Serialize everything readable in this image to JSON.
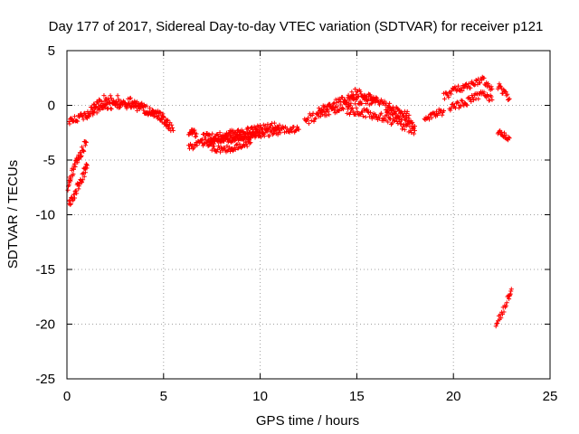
{
  "chart_data": {
    "type": "scatter",
    "title": "Day 177 of 2017, Sidereal Day-to-day VTEC variation (SDTVAR) for receiver p121",
    "xlabel": "GPS time / hours",
    "ylabel": "SDTVAR / TECUs",
    "xlim": [
      0,
      25
    ],
    "ylim": [
      -25,
      5
    ],
    "x_ticks": [
      0,
      5,
      10,
      15,
      20,
      25
    ],
    "y_ticks": [
      -25,
      -20,
      -15,
      -10,
      -5,
      0,
      5
    ],
    "grid": true,
    "marker": "+",
    "series": [
      {
        "name": "SDTVAR",
        "color": "#ff0000",
        "tracks": [
          {
            "x": [
              0.05,
              0.2,
              0.4,
              0.6,
              0.8,
              1.0
            ],
            "y": [
              -7.3,
              -6.5,
              -5.6,
              -4.8,
              -4.1,
              -3.4
            ],
            "spread": 0.45
          },
          {
            "x": [
              0.1,
              0.3,
              0.5,
              0.7,
              0.9,
              1.05
            ],
            "y": [
              -9.2,
              -8.5,
              -7.7,
              -6.9,
              -6.1,
              -5.5
            ],
            "spread": 0.45
          },
          {
            "x": [
              0.1,
              0.4,
              0.7,
              1.0,
              1.2
            ],
            "y": [
              -1.5,
              -1.3,
              -1.1,
              -0.9,
              -0.7
            ],
            "spread": 0.35
          },
          {
            "x": [
              1.2,
              1.5,
              2.0,
              2.5,
              3.0,
              3.5,
              4.0,
              4.5,
              5.0,
              5.5
            ],
            "y": [
              -0.4,
              0.2,
              0.5,
              0.5,
              0.3,
              0.2,
              -0.3,
              -0.8,
              -1.2,
              -2.3
            ],
            "spread": 0.45
          },
          {
            "x": [
              1.3,
              1.8,
              2.3,
              2.8,
              3.3,
              3.8,
              4.3,
              4.8,
              5.3
            ],
            "y": [
              -0.6,
              -0.1,
              0.0,
              0.1,
              0.0,
              -0.2,
              -0.6,
              -1.1,
              -1.8
            ],
            "spread": 0.35
          },
          {
            "x": [
              6.3,
              6.5,
              6.7
            ],
            "y": [
              -2.4,
              -2.5,
              -2.6
            ],
            "spread": 0.3
          },
          {
            "x": [
              6.3,
              7.0,
              8.0,
              9.0,
              10.0,
              11.0,
              12.0
            ],
            "y": [
              -3.8,
              -3.5,
              -3.2,
              -2.9,
              -2.6,
              -2.3,
              -2.2
            ],
            "spread": 0.35
          },
          {
            "x": [
              7.0,
              8.0,
              9.0,
              10.0,
              11.0
            ],
            "y": [
              -2.9,
              -2.7,
              -2.4,
              -2.1,
              -1.8
            ],
            "spread": 0.3
          },
          {
            "x": [
              7.3,
              8.3,
              9.3,
              10.0
            ],
            "y": [
              -3.4,
              -3.0,
              -2.9,
              -2.5
            ],
            "spread": 0.3
          },
          {
            "x": [
              7.5,
              8.5,
              9.5
            ],
            "y": [
              -4.0,
              -4.0,
              -3.4
            ],
            "spread": 0.3
          },
          {
            "x": [
              12.3,
              13.0,
              14.0,
              15.0,
              16.0
            ],
            "y": [
              -1.4,
              -0.9,
              -0.2,
              0.5,
              0.4
            ],
            "spread": 0.45
          },
          {
            "x": [
              13.0,
              14.0,
              15.0,
              16.0,
              17.0,
              17.7
            ],
            "y": [
              -0.5,
              0.2,
              1.2,
              0.4,
              -0.4,
              -0.9
            ],
            "spread": 0.4
          },
          {
            "x": [
              14.5,
              15.2,
              16.0,
              17.0,
              18.0
            ],
            "y": [
              -0.4,
              -0.6,
              -0.9,
              -1.5,
              -2.3
            ],
            "spread": 0.4
          },
          {
            "x": [
              16.5,
              17.0,
              17.5,
              18.0
            ],
            "y": [
              -0.3,
              -0.8,
              -1.3,
              -1.9
            ],
            "spread": 0.3
          },
          {
            "x": [
              18.5,
              19.0,
              19.5
            ],
            "y": [
              -1.2,
              -0.9,
              -0.5
            ],
            "spread": 0.35
          },
          {
            "x": [
              19.5,
              20.0,
              20.5,
              21.0,
              21.5,
              22.0
            ],
            "y": [
              0.8,
              1.3,
              1.7,
              2.0,
              2.3,
              1.5
            ],
            "spread": 0.35
          },
          {
            "x": [
              19.8,
              20.5,
              21.0,
              21.5,
              22.0
            ],
            "y": [
              -0.3,
              0.2,
              0.6,
              1.0,
              0.5
            ],
            "spread": 0.35
          },
          {
            "x": [
              22.3,
              22.6,
              22.9
            ],
            "y": [
              1.8,
              1.2,
              0.6
            ],
            "spread": 0.35
          },
          {
            "x": [
              22.3,
              22.6,
              22.9
            ],
            "y": [
              -2.5,
              -2.7,
              -3.0
            ],
            "spread": 0.25
          },
          {
            "x": [
              22.2,
              22.5,
              22.8,
              23.0
            ],
            "y": [
              -20.0,
              -19.0,
              -17.8,
              -16.8
            ],
            "spread": 0.35
          }
        ]
      }
    ]
  }
}
